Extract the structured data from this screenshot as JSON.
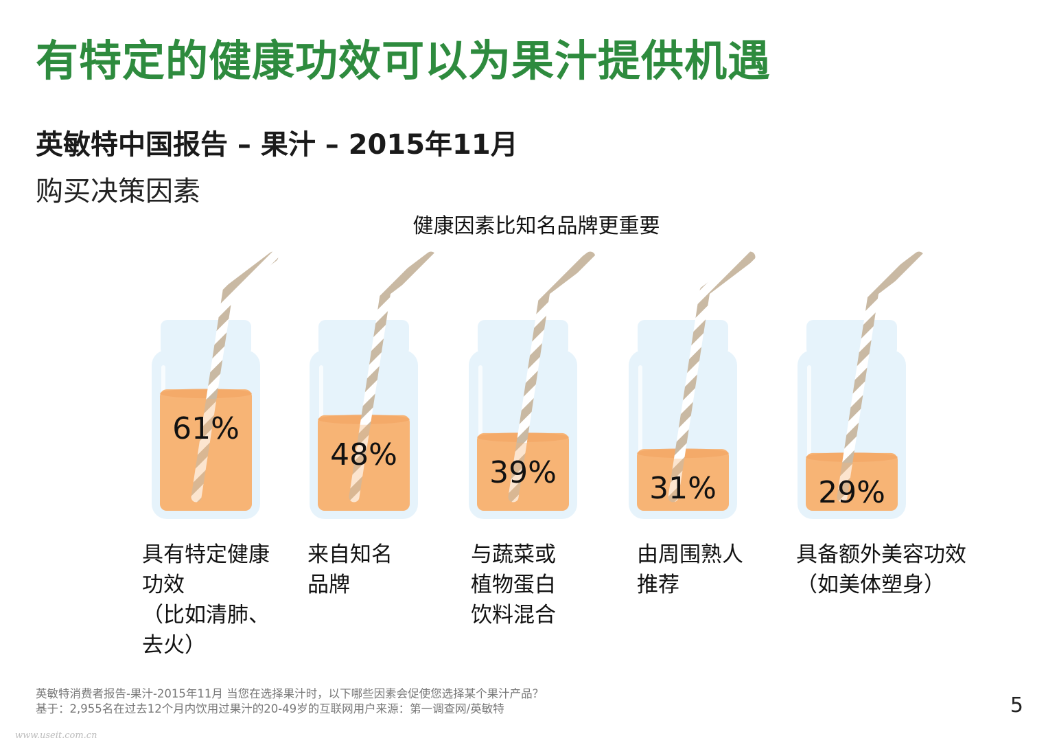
{
  "header": {
    "main_title": "有特定的健康功效可以为果汁提供机遇",
    "report_title": "英敏特中国报告 – 果汁 – 2015年11月",
    "section_title": "购买决策因素"
  },
  "chart_data": {
    "type": "bar",
    "title": "健康因素比知名品牌更重要",
    "categories": [
      "具有特定健康\n功效\n（比如清肺、\n去火）",
      "来自知名\n品牌",
      "与蔬菜或\n植物蛋白\n饮料混合",
      "由周围熟人\n推荐",
      "具备额外美容功效\n（如美体塑身）"
    ],
    "values": [
      61,
      48,
      39,
      31,
      29
    ],
    "value_labels": [
      "61%",
      "48%",
      "39%",
      "31%",
      "29%"
    ],
    "unit": "%",
    "ylim": [
      0,
      100
    ]
  },
  "footer": {
    "line1": "英敏特消费者报告-果汁-2015年11月 当您在选择果汁时，以下哪些因素会促使您选择某个果汁产品？",
    "line2": "基于：2,955名在过去12个月内饮用过果汁的20-49岁的互联网用户来源：第一调查网/英敏特",
    "page_number": "5"
  },
  "watermark": "www.useit.com.cn",
  "colors": {
    "title_green": "#2e8b3e",
    "juice_orange": "#f7b476",
    "juice_top": "#f3a35e",
    "jar_blue": "#e6f3fb",
    "straw_stripe": "#c9b9a3"
  }
}
